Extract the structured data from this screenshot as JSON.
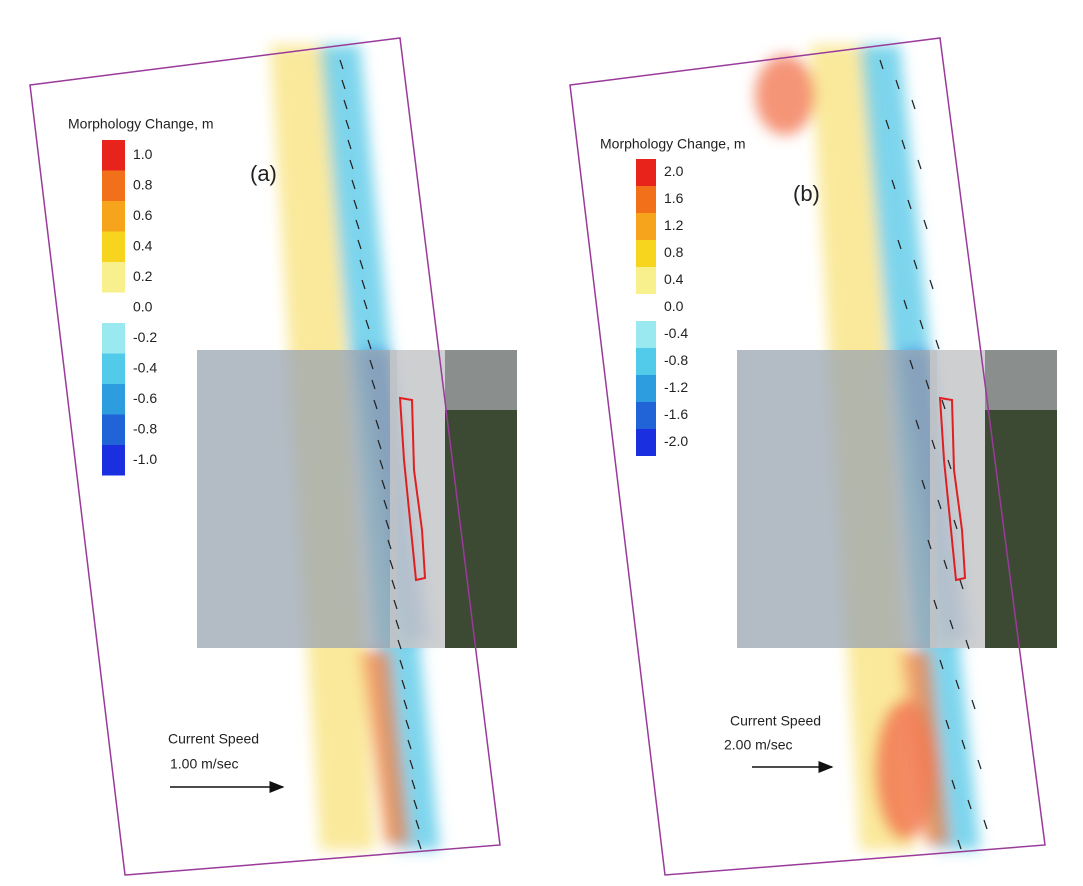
{
  "panels": [
    {
      "label": "(a)",
      "legend": {
        "title": "Morphology Change, m",
        "ticks": [
          "1.0",
          "0.8",
          "0.6",
          "0.4",
          "0.2",
          "0.0",
          "-0.2",
          "-0.4",
          "-0.6",
          "-0.8",
          "-1.0"
        ],
        "colors": [
          "#e8231b",
          "#f2701a",
          "#f5a41c",
          "#f7d41d",
          "#f8f08c",
          "#ffffff",
          "#9ae8f0",
          "#52cbea",
          "#2d9de0",
          "#2164d8",
          "#1a30e0"
        ]
      },
      "speed_title": "Current Speed",
      "speed_value": "1.00 m/sec"
    },
    {
      "label": "(b)",
      "legend": {
        "title": "Morphology Change, m",
        "ticks": [
          "2.0",
          "1.6",
          "1.2",
          "0.8",
          "0.4",
          "0.0",
          "-0.4",
          "-0.8",
          "-1.2",
          "-1.6",
          "-2.0"
        ],
        "colors": [
          "#e8231b",
          "#f2701a",
          "#f5a41c",
          "#f7d41d",
          "#f8f08c",
          "#ffffff",
          "#9ae8f0",
          "#52cbea",
          "#2d9de0",
          "#2164d8",
          "#1a30e0"
        ]
      },
      "speed_title": "Current Speed",
      "speed_value": "2.00 m/sec"
    }
  ]
}
